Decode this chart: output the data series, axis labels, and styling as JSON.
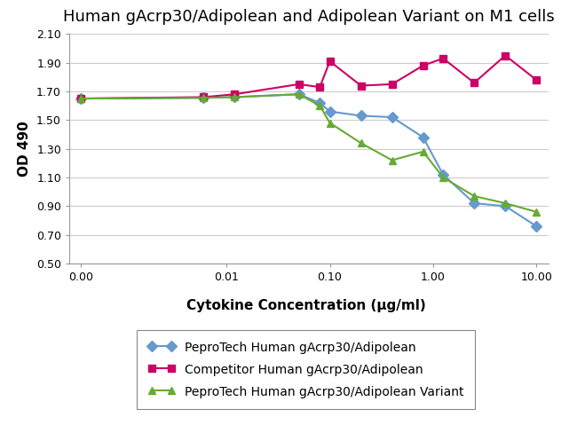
{
  "title": "Human gAcrp30/Adipolean and Adipolean Variant on M1 cells",
  "xlabel": "Cytokine Concentration (μg/ml)",
  "ylabel": "OD 490",
  "ylim": [
    0.5,
    2.1
  ],
  "yticks": [
    0.5,
    0.7,
    0.9,
    1.1,
    1.3,
    1.5,
    1.7,
    1.9,
    2.1
  ],
  "background_color": "#ffffff",
  "series": [
    {
      "label": "PeproTech Human gAcrp30/Adipolean",
      "color": "#6699cc",
      "marker": "D",
      "markersize": 6,
      "x": [
        0.0,
        0.006,
        0.012,
        0.05,
        0.08,
        0.1,
        0.2,
        0.4,
        0.8,
        1.25,
        2.5,
        5.0,
        10.0
      ],
      "y": [
        1.65,
        1.655,
        1.66,
        1.68,
        1.62,
        1.56,
        1.53,
        1.52,
        1.38,
        1.12,
        0.92,
        0.9,
        0.76
      ]
    },
    {
      "label": "Competitor Human gAcrp30/Adipolean",
      "color": "#cc0066",
      "marker": "s",
      "markersize": 6,
      "x": [
        0.0,
        0.006,
        0.012,
        0.05,
        0.08,
        0.1,
        0.2,
        0.4,
        0.8,
        1.25,
        2.5,
        5.0,
        10.0
      ],
      "y": [
        1.65,
        1.66,
        1.68,
        1.75,
        1.73,
        1.91,
        1.74,
        1.75,
        1.88,
        1.93,
        1.76,
        1.95,
        1.78
      ]
    },
    {
      "label": "PeproTech Human gAcrp30/Adipolean Variant",
      "color": "#66aa33",
      "marker": "^",
      "markersize": 6,
      "x": [
        0.0,
        0.006,
        0.012,
        0.05,
        0.08,
        0.1,
        0.2,
        0.4,
        0.8,
        1.25,
        2.5,
        5.0,
        10.0
      ],
      "y": [
        1.65,
        1.655,
        1.66,
        1.68,
        1.6,
        1.48,
        1.34,
        1.22,
        1.28,
        1.1,
        0.97,
        0.92,
        0.86
      ]
    }
  ],
  "title_fontsize": 13,
  "axis_label_fontsize": 11,
  "tick_fontsize": 9,
  "legend_fontsize": 10,
  "grid_color": "#cccccc",
  "linthresh": 0.005,
  "xtick_vals": [
    0.0,
    0.01,
    0.1,
    1.0,
    10.0
  ],
  "xtick_labels": [
    "0.00",
    "0.01",
    "0.10",
    "1.00",
    "10.00"
  ]
}
